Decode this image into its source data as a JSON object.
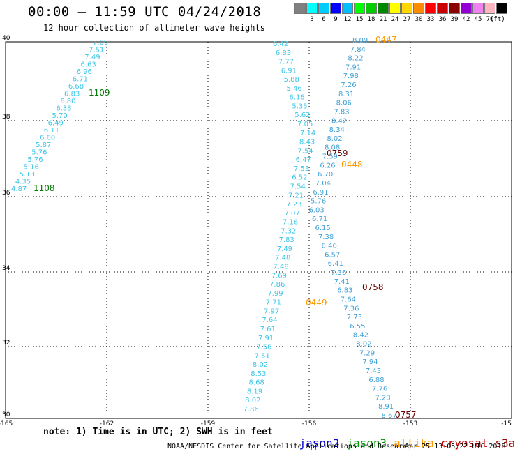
{
  "header": {
    "title": "00:00 – 11:59 UTC 04/24/2018",
    "subtitle": "12 hour collection of altimeter wave heights"
  },
  "scale": {
    "unit": "(ft)",
    "colors": [
      "#808080",
      "#00ffff",
      "#00ccff",
      "#0000ff",
      "#00bfff",
      "#00ff00",
      "#00cc00",
      "#008800",
      "#ffff00",
      "#ffd700",
      "#ff8c00",
      "#ff0000",
      "#cc0000",
      "#8b0000",
      "#9400d3",
      "#ee82ee",
      "#ffb6c1",
      "#000000"
    ],
    "labels": [
      "3",
      "6",
      "9",
      "12",
      "15",
      "18",
      "21",
      "24",
      "27",
      "30",
      "33",
      "36",
      "39",
      "42",
      "45",
      "70"
    ]
  },
  "axes": {
    "lon_ticks": [
      "-165",
      "-162",
      "-159",
      "-156",
      "-153",
      "-15"
    ],
    "lat_ticks": [
      "40",
      "38",
      "36",
      "34",
      "32",
      "30"
    ]
  },
  "tracks": [
    {
      "satellite": "jason3",
      "color": "#3fc6e8",
      "values": [
        "7.09",
        "7.51",
        "7.49",
        "6.63",
        "6.96",
        "6.71",
        "6.68",
        "6.83",
        "6.80",
        "6.33",
        "5.70",
        "6.49",
        "6.11",
        "6.60",
        "5.87",
        "5.76",
        "5.76",
        "5.16",
        "5.13",
        "4.35",
        "4.87"
      ],
      "times": [
        {
          "label": "1109",
          "color": "#007700"
        },
        {
          "label": "1108",
          "color": "#007700"
        }
      ]
    },
    {
      "satellite": "altika-west",
      "color": "#3fc6e8",
      "values": [
        "6.42",
        "6.83",
        "7.77",
        "6.91",
        "5.88",
        "5.46",
        "6.16",
        "5.35",
        "5.62",
        "7.05",
        "7.14",
        "8.43",
        "7.54",
        "6.47",
        "7.53",
        "6.52",
        "7.54",
        "7.21",
        "7.23",
        "7.07",
        "7.16",
        "7.32",
        "7.83",
        "7.49",
        "7.48",
        "7.48",
        "7.69",
        "7.86",
        "7.99",
        "7.71",
        "7.97",
        "7.64",
        "7.61",
        "7.91",
        "7.56",
        "7.51",
        "8.02",
        "8.53",
        "8.68",
        "8.19",
        "8.02",
        "7.86"
      ],
      "times": [
        {
          "label": "0759",
          "color": "#660000"
        },
        {
          "label": "0449",
          "color": "#ff9900"
        }
      ]
    },
    {
      "satellite": "altika-east",
      "color": "#3fa0d6",
      "values": [
        "8.09",
        "7.84",
        "8.22",
        "7.91",
        "7.98",
        "7.26",
        "8.31",
        "8.06",
        "7.83",
        "8.42",
        "8.34",
        "8.02",
        "8.08",
        "7.59",
        "6.26",
        "6.70",
        "7.04",
        "6.91",
        "5.76",
        "6.03",
        "6.71",
        "6.15",
        "7.38",
        "6.46",
        "6.57",
        "6.41",
        "7.36",
        "7.41",
        "6.83",
        "7.64",
        "7.36",
        "7.73",
        "6.55",
        "8.42",
        "8.02",
        "7.29",
        "7.94",
        "7.43",
        "6.88",
        "7.76",
        "7.23",
        "8.91",
        "8.67"
      ],
      "times": [
        {
          "label": "0447",
          "color": "#ff9900"
        },
        {
          "label": "0448",
          "color": "#ff9900"
        },
        {
          "label": "0758",
          "color": "#660000"
        },
        {
          "label": "0757",
          "color": "#660000"
        }
      ]
    }
  ],
  "footer": {
    "note": "note: 1) Time is in UTC; 2) SWH is in feet",
    "legend": [
      {
        "name": "jason2",
        "color": "#0000dd"
      },
      {
        "name": "jason3",
        "color": "#009900"
      },
      {
        "name": "altika",
        "color": "#ff9900"
      },
      {
        "name": "cryosat",
        "color": "#cc0000"
      },
      {
        "name": "s3a",
        "color": "#990000"
      }
    ],
    "credit": "NOAA/NESDIS Center for Satellite Applications and Research",
    "timestamp": "Apr 25 13:05:22 UTC 2018"
  }
}
